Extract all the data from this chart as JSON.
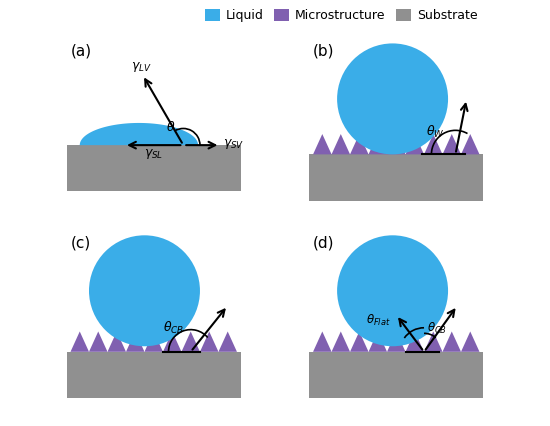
{
  "liquid_color": "#3aade8",
  "liquid_grad_color": "#1a80c8",
  "microstructure_color": "#8060b0",
  "substrate_color": "#909090",
  "background_color": "#ffffff",
  "legend_liquid": "Liquid",
  "legend_micro": "Microstructure",
  "legend_sub": "Substrate",
  "panel_labels": [
    "(a)",
    "(b)",
    "(c)",
    "(d)"
  ]
}
